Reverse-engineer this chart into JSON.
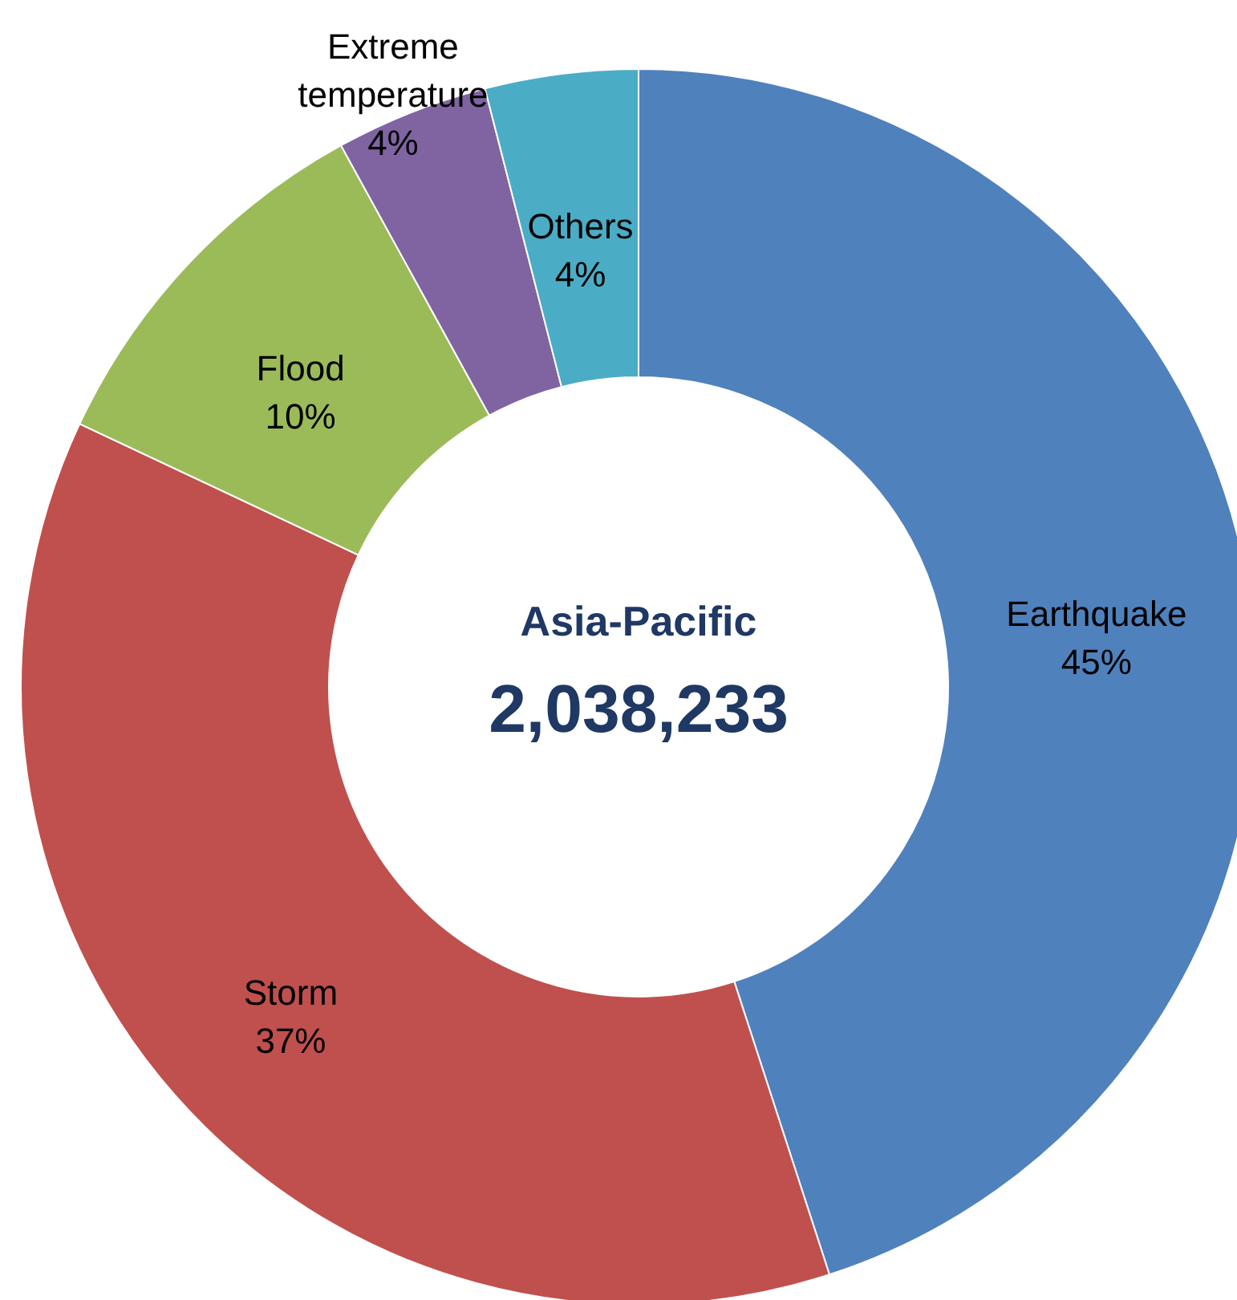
{
  "chart_data": {
    "type": "donut",
    "categories": [
      "Earthquake",
      "Storm",
      "Flood",
      "Extreme temperature",
      "Others"
    ],
    "values": [
      45,
      37,
      10,
      4,
      4
    ],
    "value_labels": [
      "45%",
      "37%",
      "10%",
      "4%",
      "4%"
    ],
    "colors": [
      "#4f81bd",
      "#c0504d",
      "#9bbb59",
      "#8064a2",
      "#4bacc6"
    ],
    "annotations": [
      "Asia-Pacific",
      "2,038,233"
    ]
  }
}
